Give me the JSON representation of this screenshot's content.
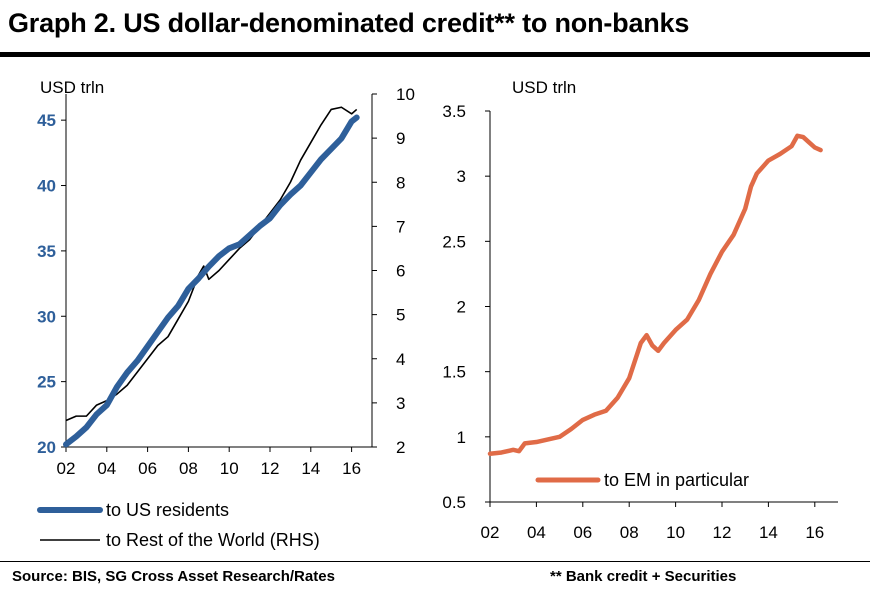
{
  "title": "Graph 2. US dollar-denominated credit** to non-banks",
  "footer": {
    "source": "Source: BIS, SG Cross Asset Research/Rates",
    "note": "** Bank credit + Securities"
  },
  "colors": {
    "us": "#2e5f9a",
    "row": "#000000",
    "em": "#e06b47",
    "lhs_ticks": "#2e5f9a"
  },
  "chart_data": [
    {
      "type": "line",
      "ylabel": "USD trln",
      "xlim": [
        2002,
        2017
      ],
      "xticks": [
        "02",
        "04",
        "06",
        "08",
        "10",
        "12",
        "14",
        "16"
      ],
      "ylim": [
        20,
        47
      ],
      "yticks": [
        "20",
        "25",
        "30",
        "35",
        "40",
        "45"
      ],
      "ylim_right": [
        2,
        10
      ],
      "yticks_right": [
        "2",
        "3",
        "4",
        "5",
        "6",
        "7",
        "8",
        "9",
        "10"
      ],
      "series": [
        {
          "name": "to US residents",
          "axis": "left",
          "x": [
            2002,
            2002.5,
            2003,
            2003.5,
            2004,
            2004.5,
            2005,
            2005.5,
            2006,
            2006.5,
            2007,
            2007.5,
            2008,
            2008.5,
            2009,
            2009.5,
            2010,
            2010.5,
            2011,
            2011.5,
            2012,
            2012.5,
            2013,
            2013.5,
            2014,
            2014.5,
            2015,
            2015.5,
            2016,
            2016.25
          ],
          "values": [
            20.2,
            20.8,
            21.5,
            22.5,
            23.2,
            24.6,
            25.7,
            26.6,
            27.7,
            28.8,
            29.9,
            30.8,
            32.1,
            32.9,
            33.8,
            34.6,
            35.2,
            35.5,
            36.2,
            36.9,
            37.5,
            38.5,
            39.3,
            40.0,
            41.0,
            42.0,
            42.8,
            43.6,
            44.9,
            45.2
          ]
        },
        {
          "name": "to Rest of the World (RHS)",
          "axis": "right",
          "x": [
            2002,
            2002.5,
            2003,
            2003.5,
            2004,
            2004.5,
            2005,
            2005.5,
            2006,
            2006.5,
            2007,
            2007.5,
            2008,
            2008.5,
            2008.75,
            2009,
            2009.5,
            2010,
            2010.5,
            2011,
            2011.5,
            2012,
            2012.5,
            2013,
            2013.5,
            2014,
            2014.5,
            2015,
            2015.5,
            2016,
            2016.25
          ],
          "values": [
            2.6,
            2.7,
            2.7,
            2.95,
            3.05,
            3.2,
            3.4,
            3.7,
            4.0,
            4.3,
            4.5,
            4.9,
            5.3,
            5.9,
            6.1,
            5.8,
            6.0,
            6.25,
            6.5,
            6.7,
            7.0,
            7.3,
            7.6,
            8.0,
            8.5,
            8.9,
            9.3,
            9.65,
            9.7,
            9.55,
            9.65
          ]
        }
      ],
      "legend": [
        "to US residents",
        "to Rest of the World (RHS)"
      ]
    },
    {
      "type": "line",
      "ylabel": "USD trln",
      "xlim": [
        2002,
        2017
      ],
      "xticks": [
        "02",
        "04",
        "06",
        "08",
        "10",
        "12",
        "14",
        "16"
      ],
      "ylim": [
        0.5,
        3.5
      ],
      "yticks": [
        "0.5",
        "1",
        "1.5",
        "2",
        "2.5",
        "3",
        "3.5"
      ],
      "series": [
        {
          "name": "to EM in particular",
          "x": [
            2002,
            2002.5,
            2003,
            2003.25,
            2003.5,
            2004,
            2004.5,
            2005,
            2005.5,
            2006,
            2006.5,
            2007,
            2007.5,
            2008,
            2008.5,
            2008.75,
            2009,
            2009.25,
            2009.5,
            2010,
            2010.5,
            2011,
            2011.5,
            2012,
            2012.5,
            2013,
            2013.25,
            2013.5,
            2014,
            2014.5,
            2015,
            2015.25,
            2015.5,
            2015.75,
            2016,
            2016.25
          ],
          "values": [
            0.87,
            0.88,
            0.9,
            0.89,
            0.95,
            0.96,
            0.98,
            1.0,
            1.06,
            1.13,
            1.17,
            1.2,
            1.3,
            1.45,
            1.72,
            1.78,
            1.7,
            1.66,
            1.72,
            1.82,
            1.9,
            2.05,
            2.25,
            2.42,
            2.55,
            2.75,
            2.92,
            3.02,
            3.12,
            3.17,
            3.23,
            3.31,
            3.3,
            3.26,
            3.22,
            3.2
          ]
        }
      ],
      "legend": [
        "to EM in particular"
      ]
    }
  ]
}
